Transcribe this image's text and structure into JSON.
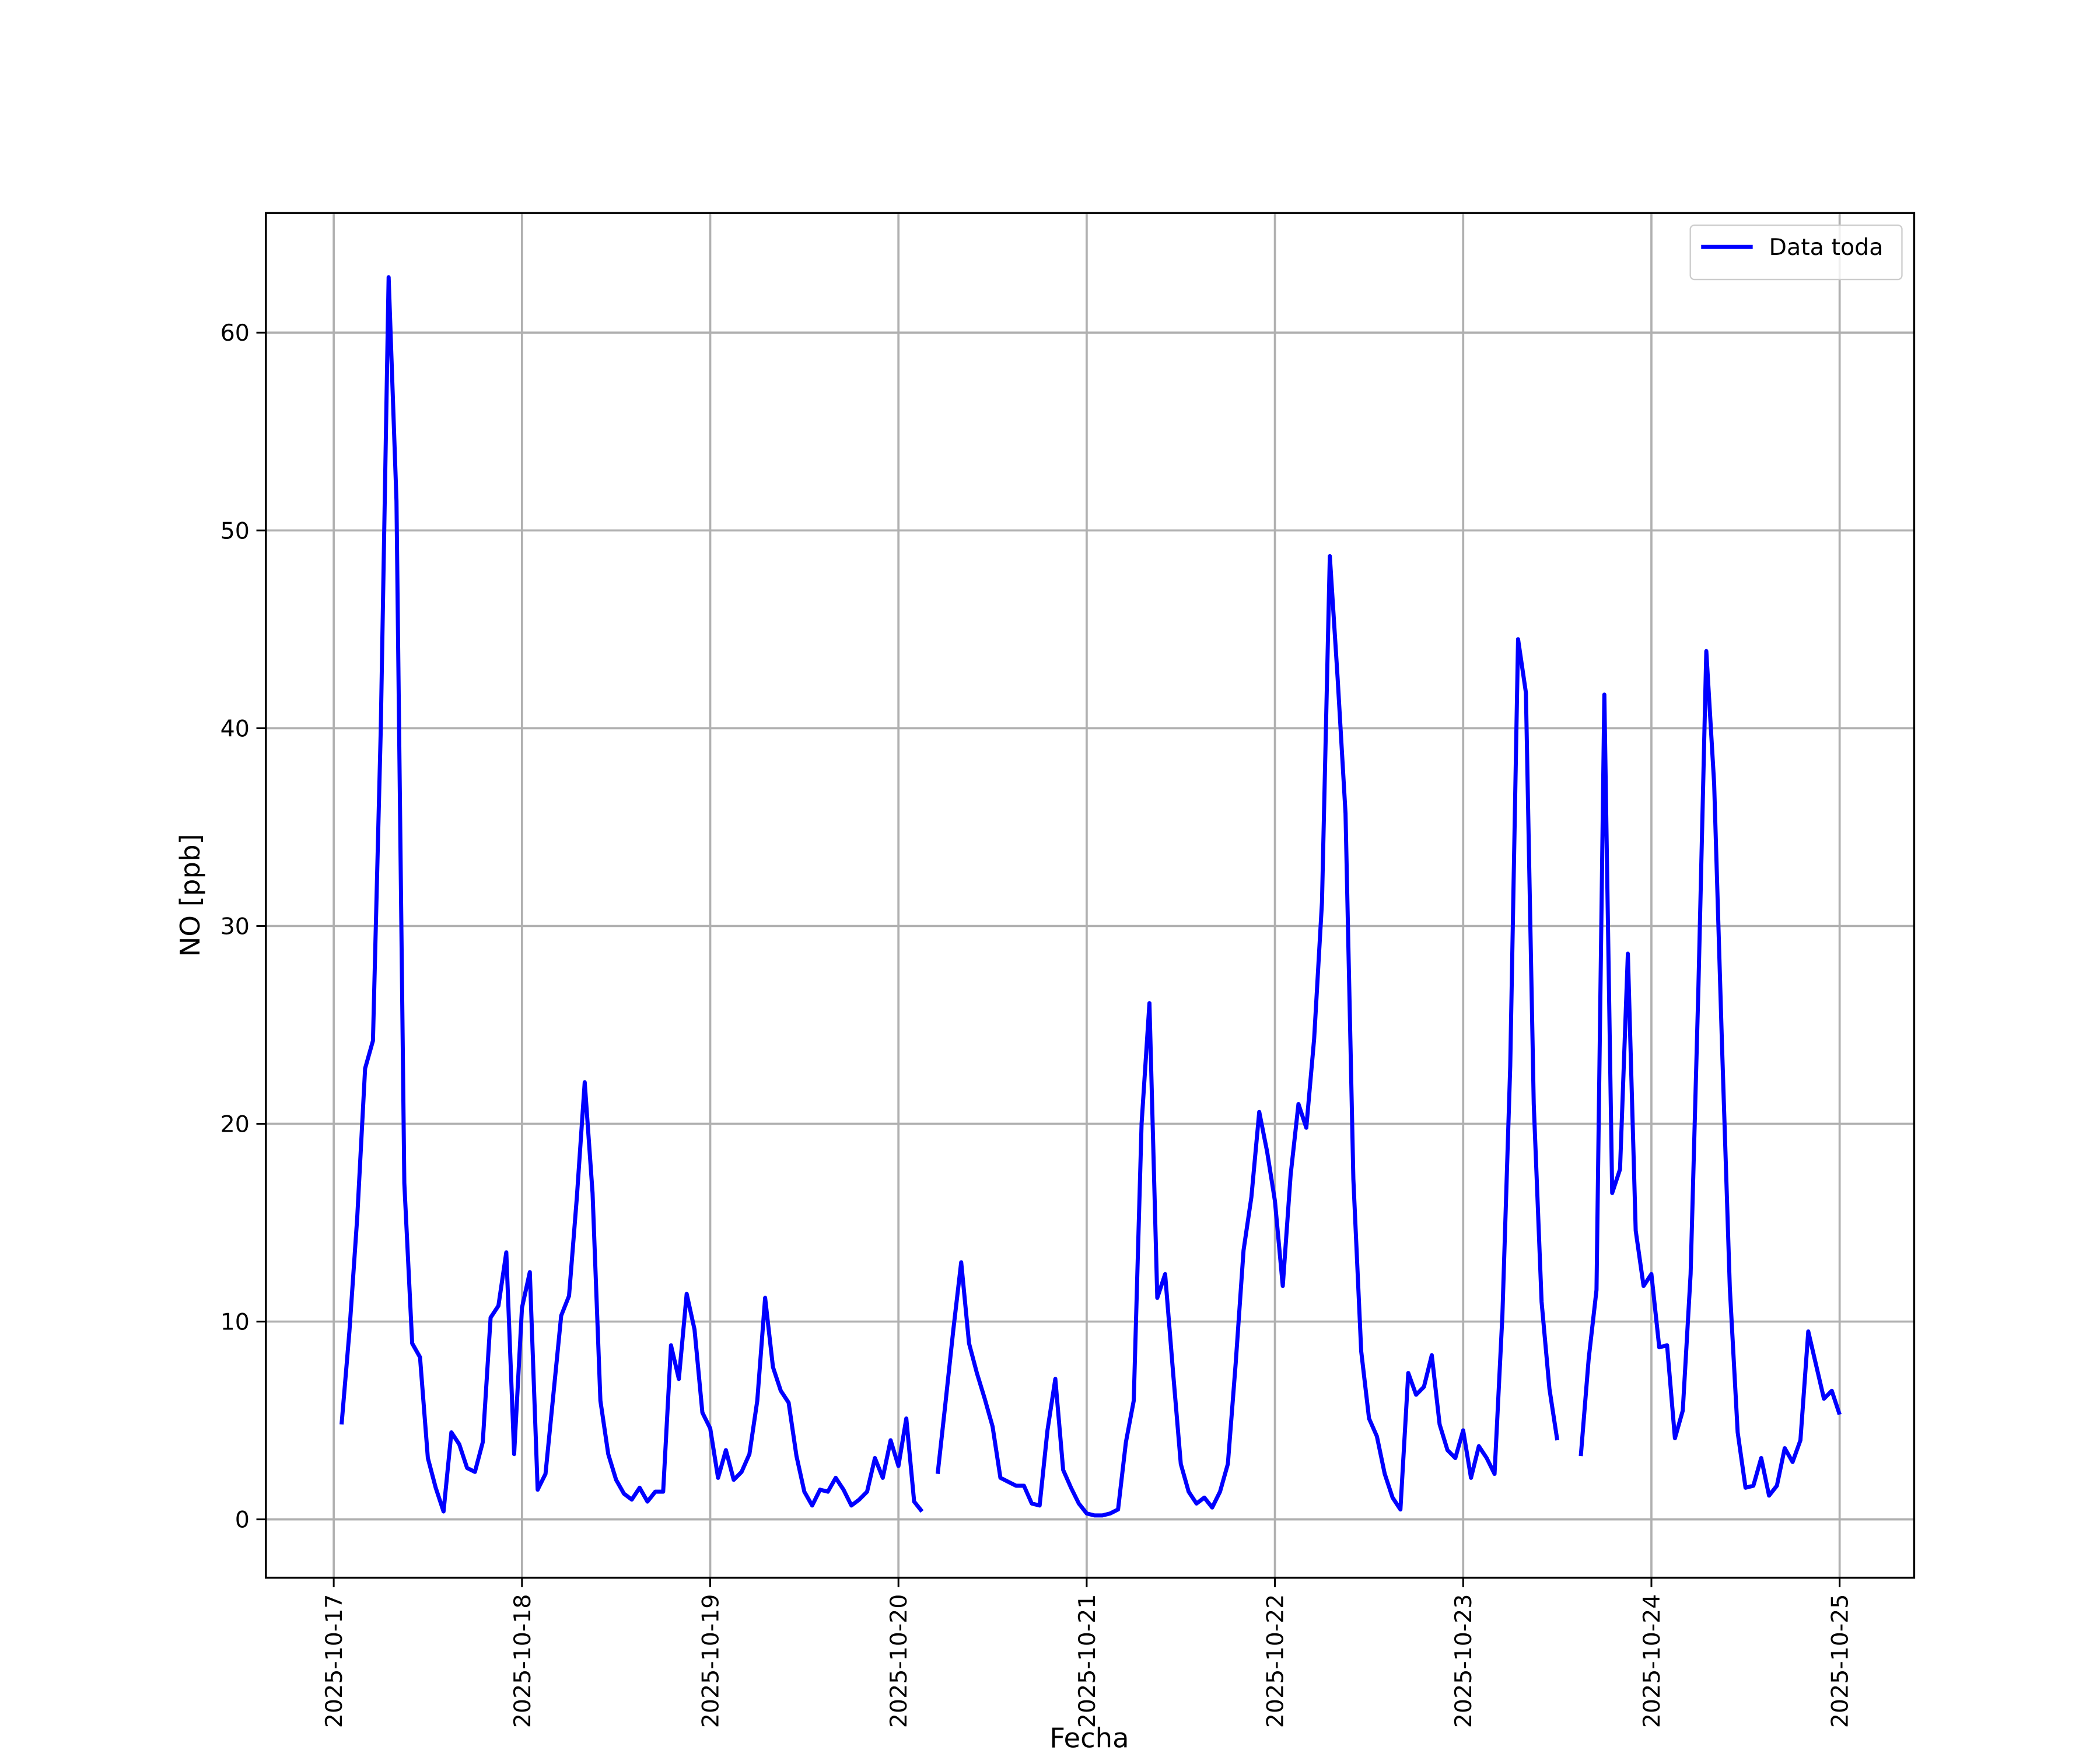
{
  "chart_data": {
    "type": "line",
    "xlabel": "Fecha",
    "ylabel": "NO [ppb]",
    "x": [
      "2025-10-17 01:00",
      "2025-10-17 02:00",
      "2025-10-17 03:00",
      "2025-10-17 04:00",
      "2025-10-17 05:00",
      "2025-10-17 06:00",
      "2025-10-17 07:00",
      "2025-10-17 08:00",
      "2025-10-17 09:00",
      "2025-10-17 10:00",
      "2025-10-17 11:00",
      "2025-10-17 12:00",
      "2025-10-17 13:00",
      "2025-10-17 14:00",
      "2025-10-17 15:00",
      "2025-10-17 16:00",
      "2025-10-17 17:00",
      "2025-10-17 18:00",
      "2025-10-17 19:00",
      "2025-10-17 20:00",
      "2025-10-17 21:00",
      "2025-10-17 22:00",
      "2025-10-17 23:00",
      "2025-10-18 00:00",
      "2025-10-18 01:00",
      "2025-10-18 02:00",
      "2025-10-18 03:00",
      "2025-10-18 04:00",
      "2025-10-18 05:00",
      "2025-10-18 06:00",
      "2025-10-18 07:00",
      "2025-10-18 08:00",
      "2025-10-18 09:00",
      "2025-10-18 10:00",
      "2025-10-18 11:00",
      "2025-10-18 12:00",
      "2025-10-18 13:00",
      "2025-10-18 14:00",
      "2025-10-18 15:00",
      "2025-10-18 16:00",
      "2025-10-18 17:00",
      "2025-10-18 18:00",
      "2025-10-18 19:00",
      "2025-10-18 20:00",
      "2025-10-18 21:00",
      "2025-10-18 22:00",
      "2025-10-18 23:00",
      "2025-10-19 00:00",
      "2025-10-19 01:00",
      "2025-10-19 02:00",
      "2025-10-19 03:00",
      "2025-10-19 04:00",
      "2025-10-19 05:00",
      "2025-10-19 06:00",
      "2025-10-19 07:00",
      "2025-10-19 08:00",
      "2025-10-19 09:00",
      "2025-10-19 10:00",
      "2025-10-19 11:00",
      "2025-10-19 12:00",
      "2025-10-19 13:00",
      "2025-10-19 14:00",
      "2025-10-19 15:00",
      "2025-10-19 16:00",
      "2025-10-19 17:00",
      "2025-10-19 18:00",
      "2025-10-19 19:00",
      "2025-10-19 20:00",
      "2025-10-19 21:00",
      "2025-10-19 22:00",
      "2025-10-19 23:00",
      "2025-10-20 00:00",
      "2025-10-20 01:00",
      "2025-10-20 02:00",
      "2025-10-20 03:00",
      "2025-10-20 04:00",
      "2025-10-20 05:00",
      "2025-10-20 06:00",
      "2025-10-20 07:00",
      "2025-10-20 08:00",
      "2025-10-20 09:00",
      "2025-10-20 10:00",
      "2025-10-20 11:00",
      "2025-10-20 12:00",
      "2025-10-20 13:00",
      "2025-10-20 14:00",
      "2025-10-20 15:00",
      "2025-10-20 16:00",
      "2025-10-20 17:00",
      "2025-10-20 18:00",
      "2025-10-20 19:00",
      "2025-10-20 20:00",
      "2025-10-20 21:00",
      "2025-10-20 22:00",
      "2025-10-20 23:00",
      "2025-10-21 00:00",
      "2025-10-21 01:00",
      "2025-10-21 02:00",
      "2025-10-21 03:00",
      "2025-10-21 04:00",
      "2025-10-21 05:00",
      "2025-10-21 06:00",
      "2025-10-21 07:00",
      "2025-10-21 08:00",
      "2025-10-21 09:00",
      "2025-10-21 10:00",
      "2025-10-21 11:00",
      "2025-10-21 12:00",
      "2025-10-21 13:00",
      "2025-10-21 14:00",
      "2025-10-21 15:00",
      "2025-10-21 16:00",
      "2025-10-21 17:00",
      "2025-10-21 18:00",
      "2025-10-21 19:00",
      "2025-10-21 20:00",
      "2025-10-21 21:00",
      "2025-10-21 22:00",
      "2025-10-21 23:00",
      "2025-10-22 00:00",
      "2025-10-22 01:00",
      "2025-10-22 02:00",
      "2025-10-22 03:00",
      "2025-10-22 04:00",
      "2025-10-22 05:00",
      "2025-10-22 06:00",
      "2025-10-22 07:00",
      "2025-10-22 08:00",
      "2025-10-22 09:00",
      "2025-10-22 10:00",
      "2025-10-22 11:00",
      "2025-10-22 12:00",
      "2025-10-22 13:00",
      "2025-10-22 14:00",
      "2025-10-22 15:00",
      "2025-10-22 16:00",
      "2025-10-22 17:00",
      "2025-10-22 18:00",
      "2025-10-22 19:00",
      "2025-10-22 20:00",
      "2025-10-22 21:00",
      "2025-10-22 22:00",
      "2025-10-22 23:00",
      "2025-10-23 00:00",
      "2025-10-23 01:00",
      "2025-10-23 02:00",
      "2025-10-23 03:00",
      "2025-10-23 04:00",
      "2025-10-23 05:00",
      "2025-10-23 06:00",
      "2025-10-23 07:00",
      "2025-10-23 08:00",
      "2025-10-23 09:00",
      "2025-10-23 10:00",
      "2025-10-23 11:00",
      "2025-10-23 12:00",
      "2025-10-23 13:00",
      "2025-10-23 14:00",
      "2025-10-23 15:00",
      "2025-10-23 16:00",
      "2025-10-23 17:00",
      "2025-10-23 18:00",
      "2025-10-23 19:00",
      "2025-10-23 20:00",
      "2025-10-23 21:00",
      "2025-10-23 22:00",
      "2025-10-23 23:00",
      "2025-10-24 00:00",
      "2025-10-24 01:00",
      "2025-10-24 02:00",
      "2025-10-24 03:00",
      "2025-10-24 04:00",
      "2025-10-24 05:00",
      "2025-10-24 06:00",
      "2025-10-24 07:00",
      "2025-10-24 08:00",
      "2025-10-24 09:00",
      "2025-10-24 10:00",
      "2025-10-24 11:00",
      "2025-10-24 12:00",
      "2025-10-24 13:00",
      "2025-10-24 14:00",
      "2025-10-24 15:00",
      "2025-10-24 16:00",
      "2025-10-24 17:00",
      "2025-10-24 18:00",
      "2025-10-24 19:00",
      "2025-10-24 20:00",
      "2025-10-24 21:00",
      "2025-10-24 22:00",
      "2025-10-24 23:00",
      "2025-10-25 00:00"
    ],
    "series": [
      {
        "name": "Data toda",
        "color": "#0000ff",
        "values": [
          4.8,
          9.5,
          15.3,
          22.8,
          24.2,
          40,
          62.8,
          51.5,
          17,
          8.9,
          8.2,
          3.1,
          1.6,
          0.4,
          4.4,
          3.8,
          2.6,
          2.4,
          3.9,
          10.2,
          10.8,
          13.5,
          3.3,
          10.7,
          12.5,
          1.5,
          2.3,
          6.3,
          10.3,
          11.3,
          16.3,
          22.1,
          16.5,
          6,
          3.3,
          2,
          1.3,
          1,
          1.6,
          0.9,
          1.4,
          1.4,
          8.8,
          7.1,
          11.4,
          9.6,
          5.4,
          4.6,
          2.1,
          3.5,
          2,
          2.4,
          3.3,
          6,
          11.2,
          7.7,
          6.5,
          5.9,
          3.2,
          1.4,
          0.7,
          1.5,
          1.4,
          2.1,
          1.5,
          0.7,
          1,
          1.4,
          3.1,
          2.1,
          4,
          2.7,
          5.1,
          0.9,
          0.4,
          null,
          2.3,
          5.9,
          9.6,
          13,
          8.9,
          7.4,
          6.1,
          4.7,
          2.1,
          1.9,
          1.7,
          1.7,
          0.8,
          0.7,
          4.5,
          7.1,
          2.5,
          1.6,
          0.8,
          0.3,
          0.2,
          0.2,
          0.3,
          0.5,
          3.9,
          6,
          20,
          26.1,
          11.2,
          12.4,
          7.5,
          2.8,
          1.4,
          0.8,
          1.1,
          0.6,
          1.4,
          2.8,
          7.9,
          13.6,
          16.3,
          20.6,
          18.6,
          16.1,
          11.8,
          17.4,
          21,
          19.8,
          24.3,
          31.2,
          48.7,
          42.5,
          35.7,
          17.2,
          8.5,
          5.1,
          4.2,
          2.3,
          1.1,
          0.5,
          7.4,
          6.3,
          6.7,
          8.3,
          4.8,
          3.5,
          3.1,
          4.5,
          2.1,
          3.7,
          3.1,
          2.3,
          10.3,
          22.9,
          44.5,
          41.8,
          21,
          11,
          6.6,
          4,
          null,
          null,
          3.2,
          8.1,
          11.6,
          41.7,
          16.5,
          17.7,
          28.6,
          14.6,
          11.8,
          12.4,
          8.7,
          8.8,
          4.1,
          5.5,
          12.4,
          27,
          43.9,
          37.2,
          24,
          11.7,
          4.4,
          1.6,
          1.7,
          3.1,
          1.2,
          1.7,
          3.6,
          2.9,
          4,
          9.5,
          7.8,
          6.1,
          6.5,
          5.3
        ]
      }
    ],
    "xlim": [
      "2025-10-16 15:21",
      "2025-10-25 09:30"
    ],
    "xticks": [
      "2025-10-17",
      "2025-10-18",
      "2025-10-19",
      "2025-10-20",
      "2025-10-21",
      "2025-10-22",
      "2025-10-23",
      "2025-10-24",
      "2025-10-25"
    ],
    "ylim": [
      -2.95,
      66.05
    ],
    "yticks": [
      0,
      10,
      20,
      30,
      40,
      50,
      60
    ],
    "grid": true,
    "legend": "upper right"
  }
}
